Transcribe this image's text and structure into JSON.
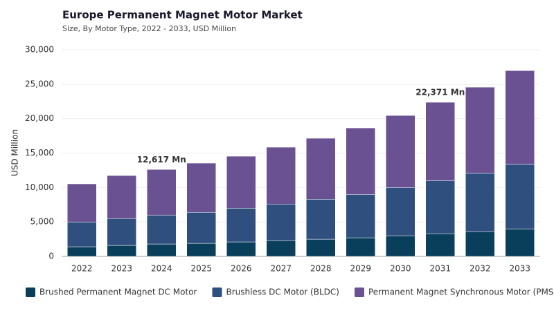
{
  "chart_data": {
    "type": "stacked_bar",
    "title": "Europe Permanent Magnet Motor Market",
    "subtitle": "Size, By Motor Type, 2022 - 2033, USD Million",
    "y_label": "USD Million",
    "categories": [
      "2022",
      "2023",
      "2024",
      "2025",
      "2026",
      "2027",
      "2028",
      "2029",
      "2030",
      "2031",
      "2032",
      "2033"
    ],
    "series": [
      {
        "name": "Brushed Permanent Magnet DC Motor",
        "color": "#0a3f5c",
        "values": [
          1400,
          1600,
          1800,
          1900,
          2100,
          2300,
          2500,
          2700,
          3000,
          3300,
          3600,
          4000
        ]
      },
      {
        "name": "Brushless DC Motor (BLDC)",
        "color": "#2f4f7f",
        "values": [
          3600,
          3900,
          4200,
          4500,
          4900,
          5300,
          5800,
          6300,
          7000,
          7700,
          8500,
          9400
        ]
      },
      {
        "name": "Permanent Magnet Synchronous Motor (PMSM)",
        "color": "#6a5192",
        "values": [
          5530,
          6240,
          6617,
          7140,
          7540,
          8250,
          8850,
          9650,
          10460,
          11371,
          12470,
          13580
        ]
      }
    ],
    "annotations": [
      {
        "label": "12,617 Mn",
        "category": "2024"
      },
      {
        "label": "22,371 Mn",
        "category": "2031"
      }
    ],
    "ylim": [
      0,
      30000
    ],
    "yticks": [
      0,
      {
        "value": 5000,
        "label": "5,000"
      },
      {
        "value": 10000,
        "label": "10,000"
      },
      {
        "value": 15000,
        "label": "15,000"
      },
      {
        "value": 20000,
        "label": "20,000"
      },
      {
        "value": 25000,
        "label": "25,000"
      },
      {
        "value": 30000,
        "label": "30,000"
      }
    ],
    "grid": true,
    "legend": "bottom"
  }
}
